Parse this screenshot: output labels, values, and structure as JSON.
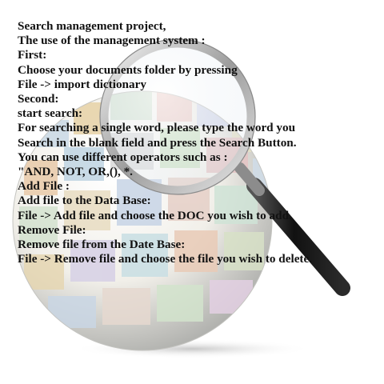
{
  "colors": {
    "text": "#111111",
    "background": "#ffffff",
    "handle": "#1c1c1c",
    "lens_rim": "#bdbdbd"
  },
  "illustration": {
    "globe": "globe-of-document-thumbnails-icon",
    "magnifier": "magnifying-glass-icon"
  },
  "instructions": {
    "lines": [
      "Search management project,",
      "The use of the management system :",
      "First:",
      "Choose your documents folder by pressing",
      "File -> import dictionary",
      "Second:",
      "start search:",
      "For searching a single word, please type the word you",
      "Search in the blank field and press the Search Button.",
      "You can use different operators such as :",
      "\"AND, NOT, OR,(), *.",
      "Add File :",
      "Add file to the Data Base:",
      "File -> Add file and choose the DOC you wish to add.",
      "Remove File:",
      "Remove file from the Date Base:",
      "File -> Remove file and choose the file you wish to delete."
    ]
  }
}
